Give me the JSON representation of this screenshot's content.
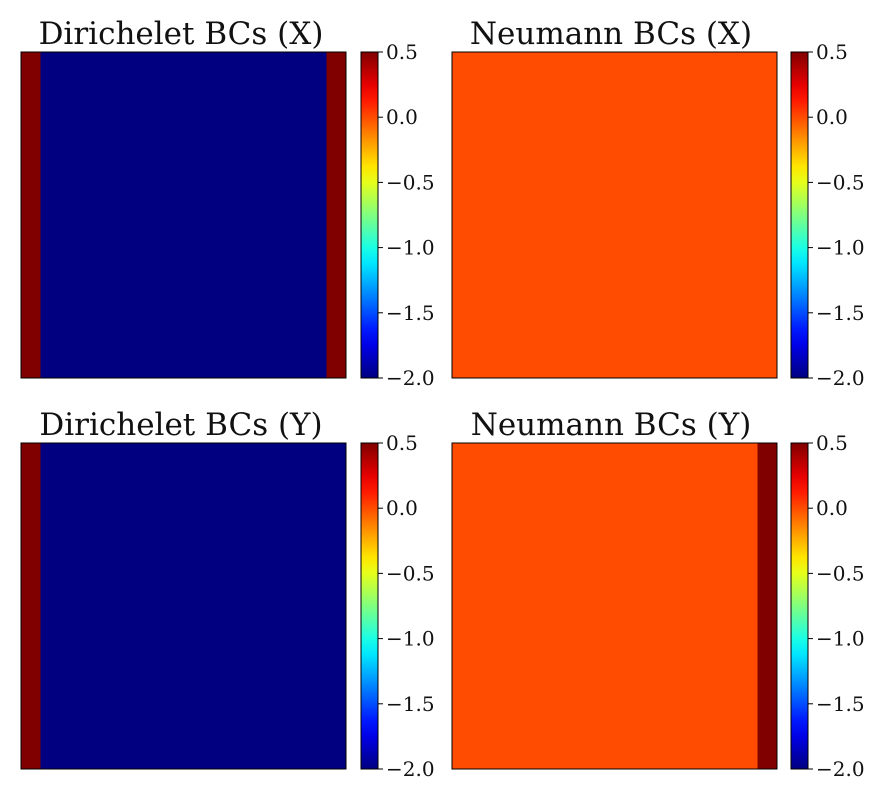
{
  "colormap": {
    "name": "jet",
    "vmin": -2.0,
    "vmax": 0.5,
    "ticks": [
      "0.5",
      "0.0",
      "−0.5",
      "−1.0",
      "−1.5",
      "−2.0"
    ],
    "tick_values": [
      0.5,
      0.0,
      -0.5,
      -1.0,
      -1.5,
      -2.0
    ]
  },
  "colors": {
    "red": "#ff1400",
    "blue": "#0000ff",
    "yellow_orange": "#ffcc00"
  },
  "chart_data": [
    {
      "type": "heatmap",
      "title": "Dirichelet BCs (X)",
      "xlabel": "",
      "ylabel": "",
      "background_value": -2.0,
      "bands": [
        {
          "edge": "left",
          "value": 0.5,
          "width_fraction": 0.06
        },
        {
          "edge": "right",
          "value": 0.5,
          "width_fraction": 0.06
        }
      ],
      "colorbar_range": [
        -2.0,
        0.5
      ]
    },
    {
      "type": "heatmap",
      "title": "Neumann BCs (X)",
      "xlabel": "",
      "ylabel": "",
      "background_value": 0.0,
      "bands": [],
      "colorbar_range": [
        -2.0,
        0.5
      ]
    },
    {
      "type": "heatmap",
      "title": "Dirichelet BCs (Y)",
      "xlabel": "",
      "ylabel": "",
      "background_value": -2.0,
      "bands": [
        {
          "edge": "left",
          "value": 0.5,
          "width_fraction": 0.06
        }
      ],
      "colorbar_range": [
        -2.0,
        0.5
      ]
    },
    {
      "type": "heatmap",
      "title": "Neumann BCs (Y)",
      "xlabel": "",
      "ylabel": "",
      "background_value": 0.0,
      "bands": [
        {
          "edge": "right",
          "value": 0.5,
          "width_fraction": 0.06
        }
      ],
      "colorbar_range": [
        -2.0,
        0.5
      ]
    }
  ]
}
